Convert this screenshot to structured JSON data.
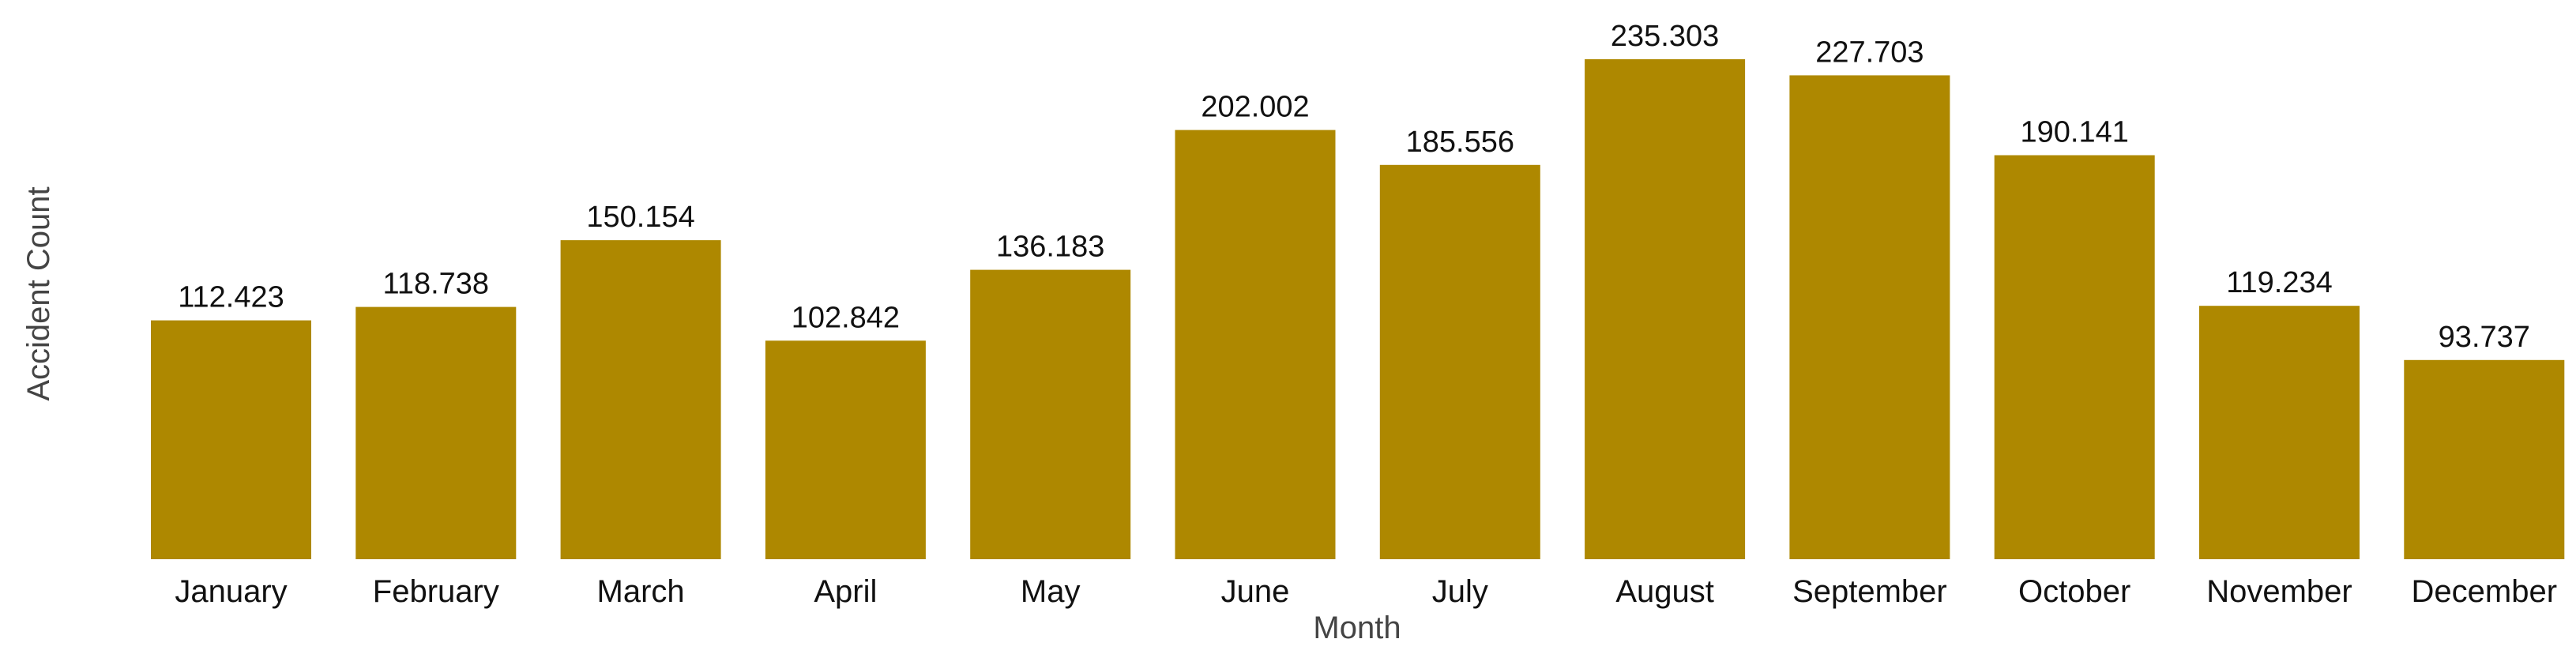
{
  "chart_data": {
    "type": "bar",
    "title": "",
    "xlabel": "Month",
    "ylabel": "Accident Count",
    "categories": [
      "January",
      "February",
      "March",
      "April",
      "May",
      "June",
      "July",
      "August",
      "September",
      "October",
      "November",
      "December"
    ],
    "values": [
      112.423,
      118.738,
      150.154,
      102.842,
      136.183,
      202.002,
      185.556,
      235.303,
      227.703,
      190.141,
      119.234,
      93.737
    ],
    "value_labels": [
      "112.423",
      "118.738",
      "150.154",
      "102.842",
      "136.183",
      "202.002",
      "185.556",
      "235.303",
      "227.703",
      "190.141",
      "119.234",
      "93.737"
    ],
    "ylim": [
      0,
      235.303
    ],
    "grid": false,
    "legend": "none",
    "bar_color": "#AE8800"
  }
}
